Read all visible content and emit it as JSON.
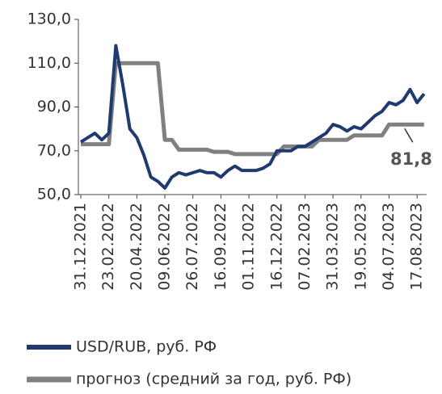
{
  "chart_data": {
    "type": "line",
    "categories": [
      "31.12.2021",
      null,
      null,
      null,
      "23.02.2022",
      null,
      null,
      null,
      "20.04.2022",
      null,
      null,
      null,
      "09.06.2022",
      null,
      null,
      null,
      "26.07.2022",
      null,
      null,
      null,
      "16.09.2022",
      null,
      null,
      null,
      "01.11.2022",
      null,
      null,
      null,
      "16.12.2022",
      null,
      null,
      null,
      "07.02.2023",
      null,
      null,
      null,
      "31.03.2023",
      null,
      null,
      null,
      "19.05.2023",
      null,
      null,
      null,
      "04.07.2023",
      null,
      null,
      null,
      "17.08.2023",
      null
    ],
    "series": [
      {
        "name": "USD/RUB, руб. РФ",
        "color": "#1f3a6e",
        "values": [
          74,
          76,
          78,
          75,
          78,
          118,
          100,
          80,
          76,
          68,
          58,
          56,
          53,
          58,
          60,
          59,
          60,
          61,
          60,
          60,
          58,
          61,
          63,
          61,
          61,
          61,
          62,
          64,
          70,
          70,
          70,
          72,
          72,
          74,
          76,
          78,
          82,
          81,
          79,
          81,
          80,
          83,
          86,
          88,
          92,
          91,
          93,
          98,
          92,
          96
        ]
      },
      {
        "name": "прогноз (средний за год, руб. РФ)",
        "color": "#808080",
        "values": [
          73,
          73,
          73,
          73,
          73,
          110,
          110,
          110,
          110,
          110,
          110,
          110,
          75,
          75,
          70.5,
          70.5,
          70.5,
          70.5,
          70.5,
          69.5,
          69.5,
          69.5,
          68.5,
          68.5,
          68.5,
          68.5,
          68.5,
          68.5,
          68.5,
          72,
          72,
          72,
          72,
          72,
          75,
          75,
          75,
          75,
          75,
          77,
          77,
          77,
          77,
          77,
          82,
          82,
          82,
          82,
          82,
          82
        ]
      }
    ],
    "annotations": [
      {
        "text": "81,8"
      }
    ],
    "ylim": [
      50,
      130
    ],
    "yticks": [
      {
        "value": 50,
        "label": "50,0"
      },
      {
        "value": 70,
        "label": "70,0"
      },
      {
        "value": 90,
        "label": "90,0"
      },
      {
        "value": 110,
        "label": "110,0"
      },
      {
        "value": 130,
        "label": "130,0"
      }
    ]
  }
}
